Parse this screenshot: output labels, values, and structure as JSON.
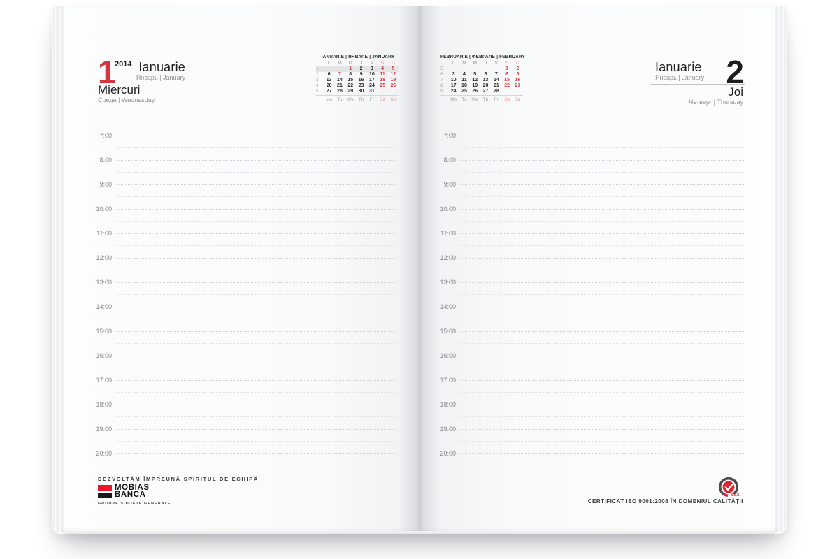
{
  "colors": {
    "accent_red": "#d5353d",
    "cal_red": "#e13a40",
    "weekend_soft": "#ef8e8e",
    "highlight_gray": "#e3e4e6",
    "logo_red": "#e9182d",
    "badge_red": "#e02430",
    "badge_ring": "#4d4d4d"
  },
  "left_page": {
    "day_number": "1",
    "year": "2014",
    "month": "Ianuarie",
    "month_sub": "Январь | January",
    "weekday": "Miercuri",
    "weekday_sub": "Среда | Wednesday"
  },
  "right_page": {
    "day_number": "2",
    "month": "Ianuarie",
    "month_sub": "Январь | January",
    "weekday": "Joi",
    "weekday_sub": "Четверг | Thursday"
  },
  "mini_calendars": {
    "left": {
      "title": "IANUARIE | ЯНВАРЬ | JANUARY",
      "day_headers": [
        "L",
        "M",
        "M",
        "J",
        "V",
        "S",
        "D"
      ],
      "day_footers": [
        "Mo",
        "Tu",
        "We",
        "Th",
        "Fr",
        "Sa",
        "Su"
      ],
      "weeks": [
        {
          "num": "1",
          "highlight": true,
          "days": [
            "",
            "",
            "1",
            "2",
            "3",
            "4",
            "5"
          ],
          "red": [
            false,
            false,
            true,
            false,
            false,
            true,
            true
          ]
        },
        {
          "num": "2",
          "highlight": false,
          "days": [
            "6",
            "7",
            "8",
            "9",
            "10",
            "11",
            "12"
          ],
          "red": [
            false,
            true,
            false,
            false,
            false,
            true,
            true
          ]
        },
        {
          "num": "3",
          "highlight": false,
          "days": [
            "13",
            "14",
            "15",
            "16",
            "17",
            "18",
            "19"
          ],
          "red": [
            false,
            false,
            false,
            false,
            false,
            true,
            true
          ]
        },
        {
          "num": "4",
          "highlight": false,
          "days": [
            "20",
            "21",
            "22",
            "23",
            "24",
            "25",
            "26"
          ],
          "red": [
            false,
            false,
            false,
            false,
            false,
            true,
            true
          ]
        },
        {
          "num": "5",
          "highlight": false,
          "days": [
            "27",
            "28",
            "29",
            "30",
            "31",
            "",
            ""
          ],
          "red": [
            false,
            false,
            false,
            false,
            false,
            false,
            false
          ]
        }
      ]
    },
    "right": {
      "title": "FEBRUARIE | ФЕВРАЛЬ | FEBRUARY",
      "day_headers": [
        "L",
        "M",
        "M",
        "J",
        "V",
        "S",
        "D"
      ],
      "day_footers": [
        "Mo",
        "Tu",
        "We",
        "Th",
        "Fr",
        "Sa",
        "Su"
      ],
      "weeks": [
        {
          "num": "5",
          "highlight": false,
          "days": [
            "",
            "",
            "",
            "",
            "",
            "1",
            "2"
          ],
          "red": [
            false,
            false,
            false,
            false,
            false,
            true,
            true
          ]
        },
        {
          "num": "6",
          "highlight": false,
          "days": [
            "3",
            "4",
            "5",
            "6",
            "7",
            "8",
            "9"
          ],
          "red": [
            false,
            false,
            false,
            false,
            false,
            true,
            true
          ]
        },
        {
          "num": "7",
          "highlight": false,
          "days": [
            "10",
            "11",
            "12",
            "13",
            "14",
            "15",
            "16"
          ],
          "red": [
            false,
            false,
            false,
            false,
            false,
            true,
            true
          ]
        },
        {
          "num": "8",
          "highlight": false,
          "days": [
            "17",
            "18",
            "19",
            "20",
            "21",
            "22",
            "23"
          ],
          "red": [
            false,
            false,
            false,
            false,
            false,
            true,
            true
          ]
        },
        {
          "num": "9",
          "highlight": false,
          "days": [
            "24",
            "25",
            "26",
            "27",
            "28",
            "",
            ""
          ],
          "red": [
            false,
            false,
            false,
            false,
            false,
            false,
            false
          ]
        }
      ]
    }
  },
  "schedule_hours": [
    "7:00",
    "8:00",
    "9:00",
    "10:00",
    "11:00",
    "12:00",
    "13:00",
    "14:00",
    "15:00",
    "16:00",
    "17:00",
    "18:00",
    "19:00",
    "20:00"
  ],
  "footer": {
    "tagline": "DEZVOLTĂM ÎMPREUNĂ SPIRITUL DE ECHIPĂ",
    "brand_line1": "MOBIAS",
    "brand_line2": "BANCA",
    "brand_group": "GROUPE SOCIETE GENERALE",
    "badge_label": "SGS",
    "certificate": "CERTIFICAT ISO 9001:2008 ÎN DOMENIUL CALITĂȚII"
  }
}
